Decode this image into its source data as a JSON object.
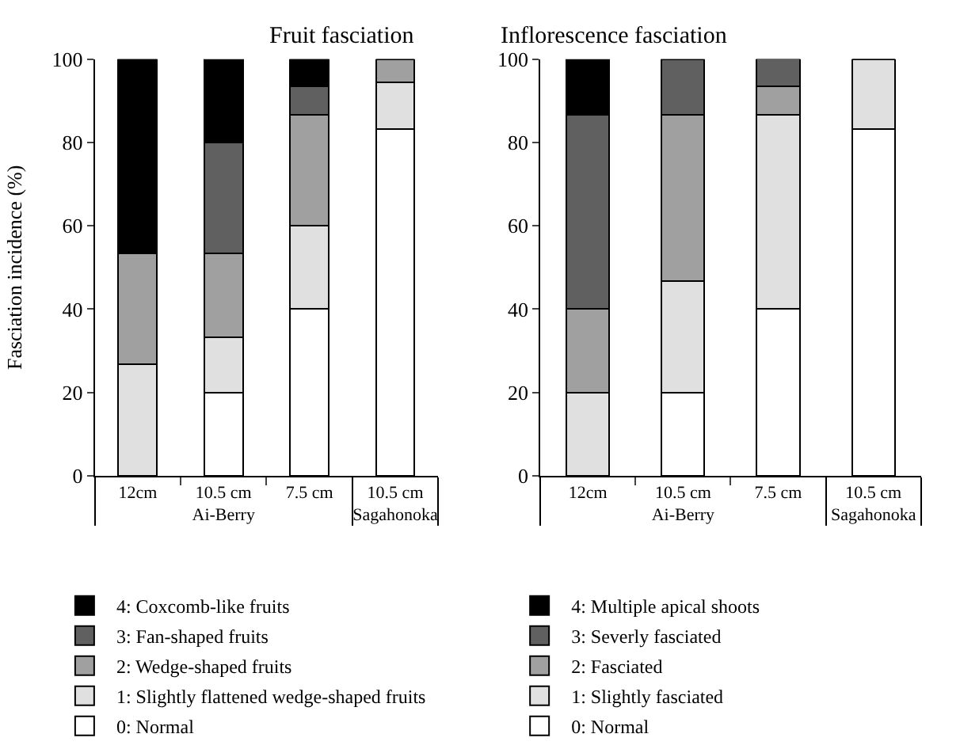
{
  "chart_data": [
    {
      "type": "bar",
      "stacked": true,
      "title": "Fruit fasciation",
      "ylabel": "Fasciation incidence (%)",
      "categories": [
        "12cm",
        "10.5 cm",
        "7.5 cm",
        "10.5 cm"
      ],
      "annotations": [
        "Ai-Berry",
        "Sagahonoka"
      ],
      "ylim": [
        0,
        100
      ],
      "yticks": [
        0,
        20,
        40,
        60,
        80,
        100
      ],
      "grid": false,
      "legend": "bottom",
      "series": [
        {
          "name": "0: Normal",
          "color": "#ffffff",
          "values": [
            0,
            20,
            40,
            83.3
          ]
        },
        {
          "name": "1: Slightly flattened wedge-shaped fruits",
          "color": "#e0e0e0",
          "values": [
            26.7,
            13.3,
            20,
            11.1
          ]
        },
        {
          "name": "2: Wedge-shaped fruits",
          "color": "#a0a0a0",
          "values": [
            26.7,
            20,
            26.7,
            5.6
          ]
        },
        {
          "name": "3: Fan-shaped fruits",
          "color": "#606060",
          "values": [
            0,
            26.7,
            6.7,
            0
          ]
        },
        {
          "name": "4: Coxcomb-like fruits",
          "color": "#000000",
          "values": [
            46.7,
            20,
            6.7,
            0
          ]
        }
      ]
    },
    {
      "type": "bar",
      "stacked": true,
      "title": "Inflorescence fasciation",
      "categories": [
        "12cm",
        "10.5 cm",
        "7.5 cm",
        "10.5 cm"
      ],
      "annotations": [
        "Ai-Berry",
        "Sagahonoka"
      ],
      "ylim": [
        0,
        100
      ],
      "yticks": [
        0,
        20,
        40,
        60,
        80,
        100
      ],
      "grid": false,
      "legend": "bottom",
      "series": [
        {
          "name": "0: Normal",
          "color": "#ffffff",
          "values": [
            0,
            20,
            40,
            83.3
          ]
        },
        {
          "name": "1: Slightly fasciated",
          "color": "#e0e0e0",
          "values": [
            20,
            26.7,
            46.7,
            16.7
          ]
        },
        {
          "name": "2: Fasciated",
          "color": "#a0a0a0",
          "values": [
            20,
            40,
            6.7,
            0
          ]
        },
        {
          "name": "3: Severly fasciated",
          "color": "#606060",
          "values": [
            46.7,
            13.3,
            6.7,
            0
          ]
        },
        {
          "name": "4: Multiple apical shoots",
          "color": "#000000",
          "values": [
            13.3,
            0,
            0,
            0
          ]
        }
      ]
    }
  ]
}
